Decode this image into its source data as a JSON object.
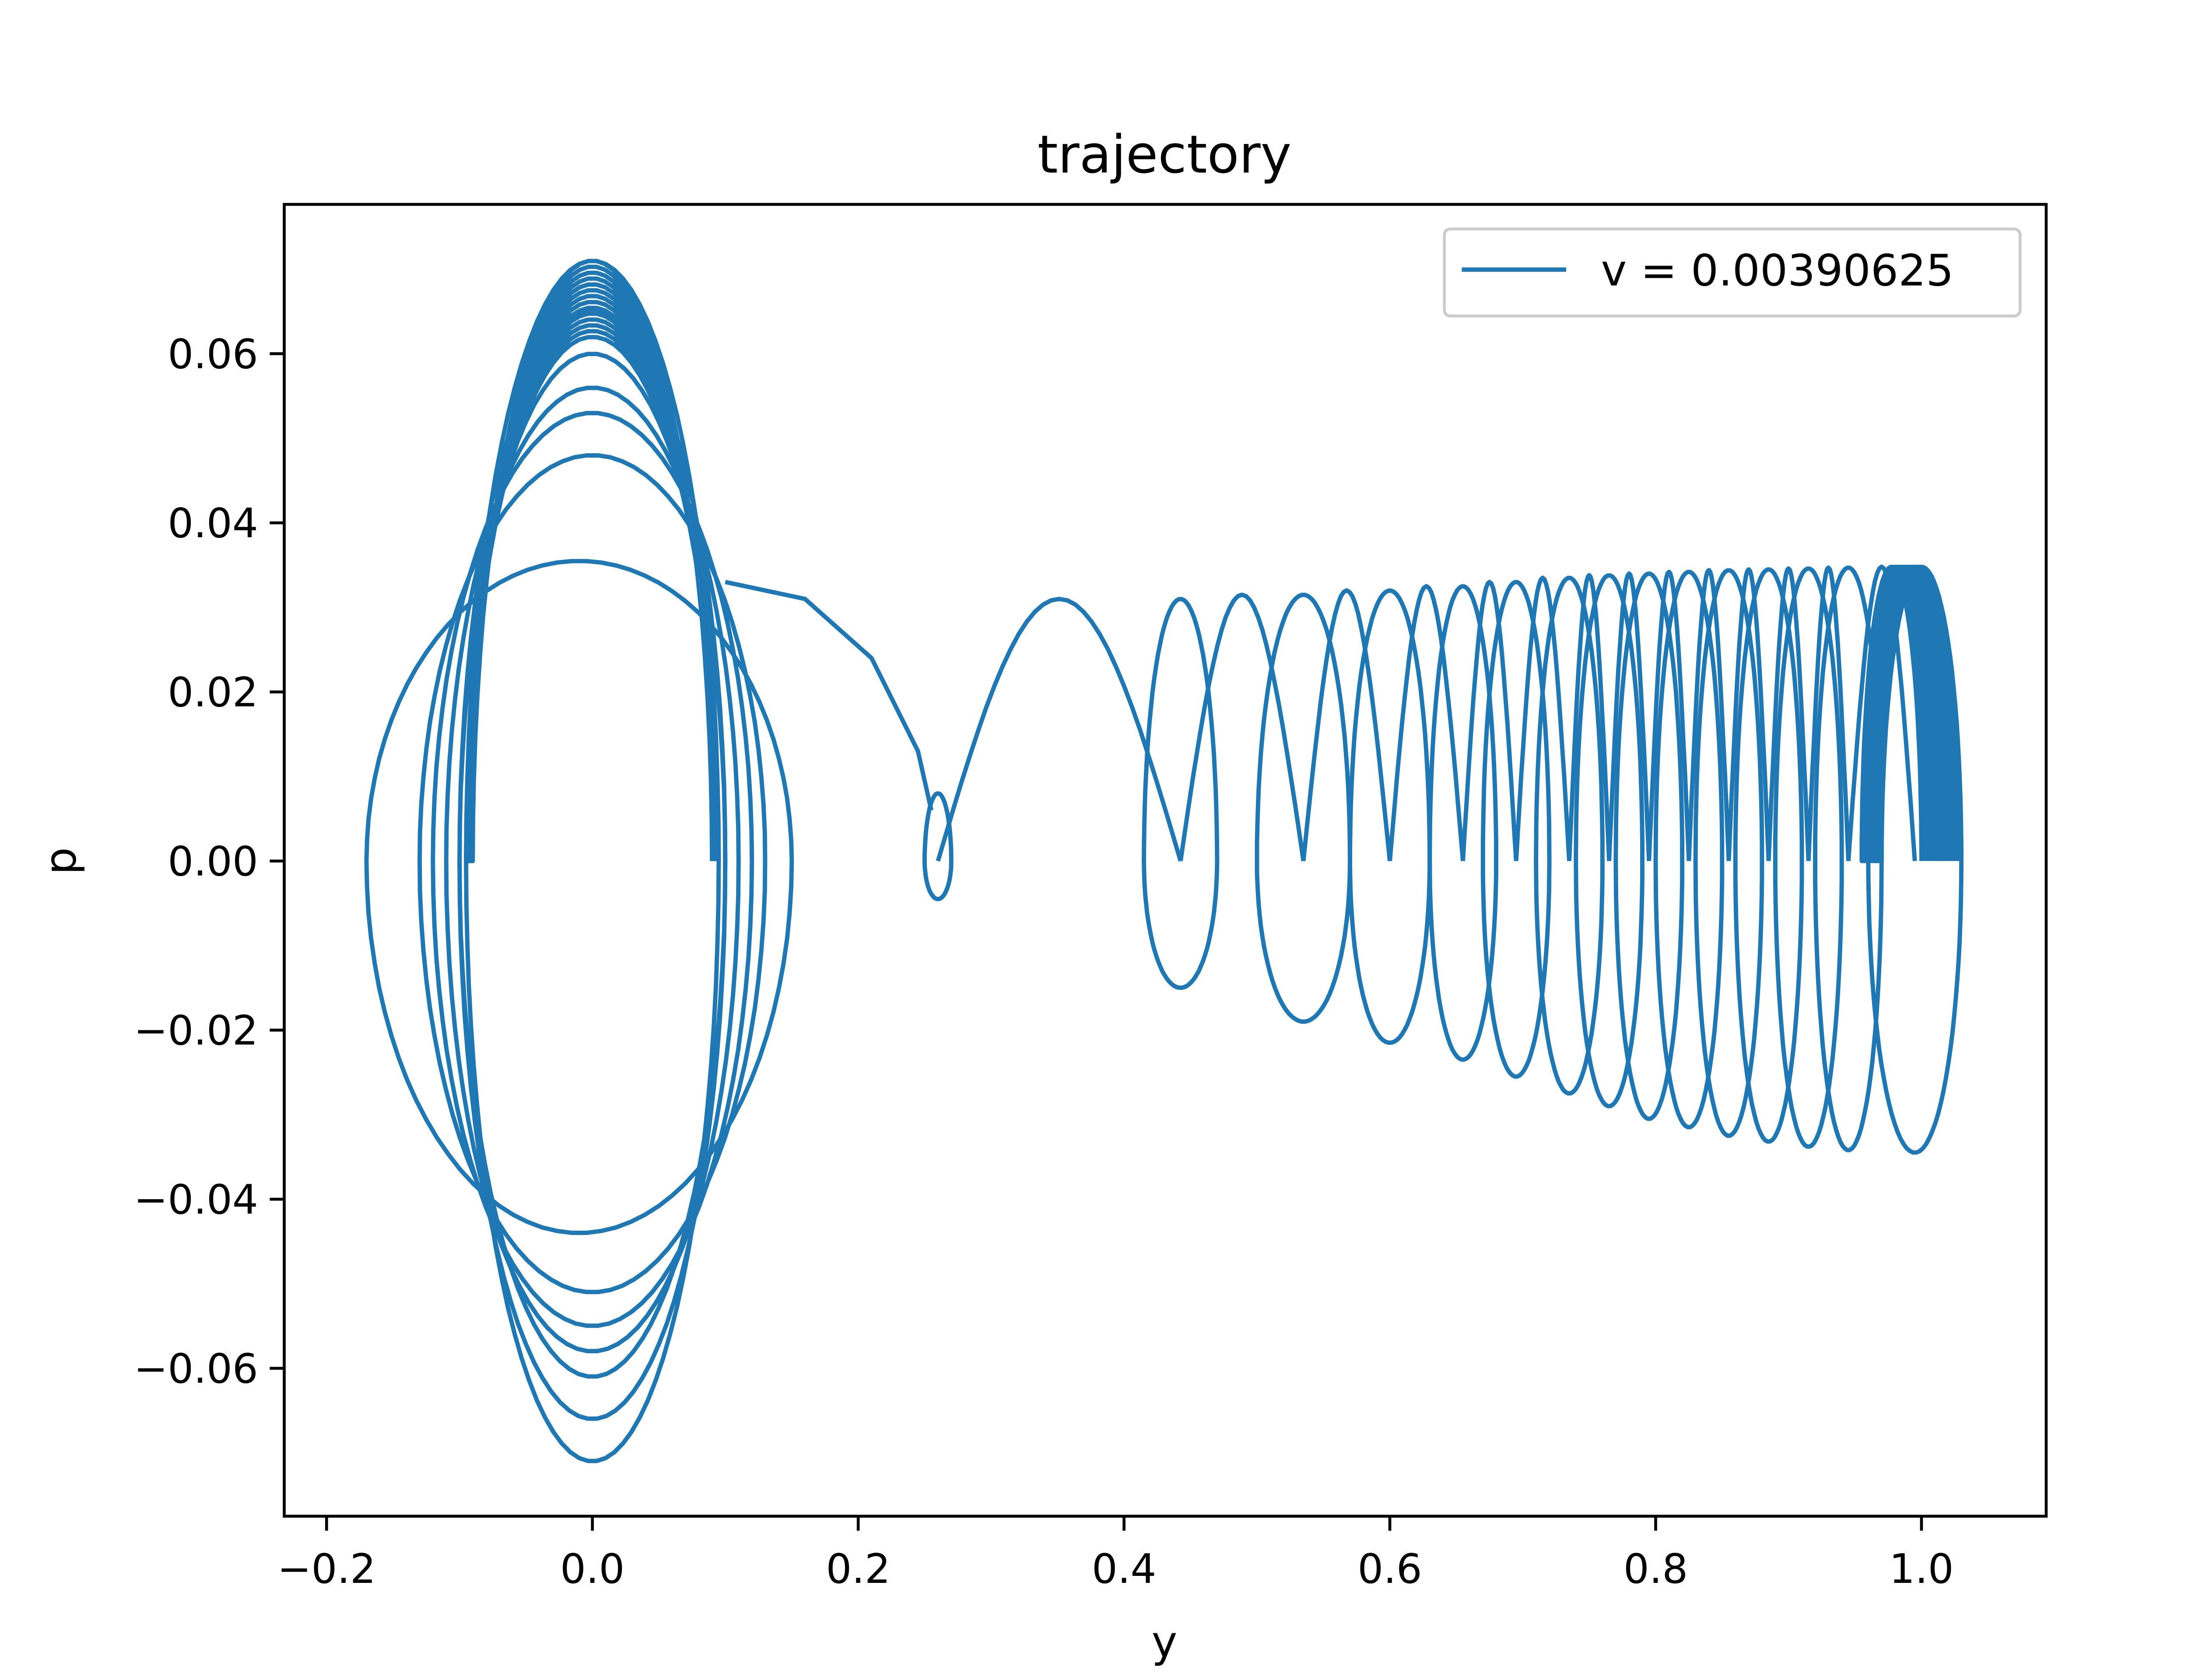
{
  "colors": {
    "series": "#1f77b4",
    "axes": "#000000",
    "background": "#ffffff",
    "legend_border": "#cccccc"
  },
  "chart_data": {
    "type": "line",
    "title": "trajectory",
    "xlabel": "y",
    "ylabel": "p",
    "xlim": [
      -0.2,
      1.1
    ],
    "ylim": [
      -0.078,
      0.078
    ],
    "xticks": [
      -0.2,
      0.0,
      0.2,
      0.4,
      0.6,
      0.8,
      1.0
    ],
    "xtick_labels": [
      "−0.2",
      "0.0",
      "0.2",
      "0.4",
      "0.6",
      "0.8",
      "1.0"
    ],
    "yticks": [
      -0.06,
      -0.04,
      -0.02,
      0.0,
      0.02,
      0.04,
      0.06
    ],
    "ytick_labels": [
      "−0.06",
      "−0.04",
      "−0.02",
      "0.00",
      "0.02",
      "0.04",
      "0.06"
    ],
    "grid": false,
    "legend_position": "upper right",
    "series": [
      {
        "name": "v = 0.00390625",
        "color": "#1f77b4",
        "loops_left": [
          {
            "center_y": 0.0,
            "y_min": -0.17,
            "y_max": 0.15,
            "p_top": 0.0355,
            "p_bottom": -0.044
          },
          {
            "center_y": 0.0,
            "y_min": -0.13,
            "y_max": 0.13,
            "p_top": 0.048,
            "p_bottom": -0.051
          },
          {
            "center_y": 0.0,
            "y_min": -0.12,
            "y_max": 0.12,
            "p_top": 0.053,
            "p_bottom": -0.055
          },
          {
            "center_y": 0.0,
            "y_min": -0.11,
            "y_max": 0.11,
            "p_top": 0.056,
            "p_bottom": -0.058
          },
          {
            "center_y": 0.0,
            "y_min": -0.1,
            "y_max": 0.1,
            "p_top": 0.06,
            "p_bottom": -0.061
          },
          {
            "center_y": 0.0,
            "y_min": -0.1,
            "y_max": 0.1,
            "p_top": 0.065,
            "p_bottom": -0.066
          },
          {
            "center_y": 0.0,
            "y_min": -0.095,
            "y_max": 0.095,
            "p_top": 0.071,
            "p_bottom": -0.071
          }
        ],
        "loops_right": [
          {
            "y_left": 0.25,
            "y_right": 0.27,
            "p_top": 0.008,
            "p_bottom": -0.0045
          },
          {
            "y_left": 0.415,
            "y_right": 0.47,
            "p_top": 0.031,
            "p_bottom": -0.015
          },
          {
            "y_left": 0.5,
            "y_right": 0.57,
            "p_top": 0.0315,
            "p_bottom": -0.019
          },
          {
            "y_left": 0.57,
            "y_right": 0.63,
            "p_top": 0.032,
            "p_bottom": -0.0215
          },
          {
            "y_left": 0.63,
            "y_right": 0.68,
            "p_top": 0.0325,
            "p_bottom": -0.0235
          },
          {
            "y_left": 0.67,
            "y_right": 0.72,
            "p_top": 0.033,
            "p_bottom": -0.0255
          },
          {
            "y_left": 0.71,
            "y_right": 0.76,
            "p_top": 0.0335,
            "p_bottom": -0.0275
          },
          {
            "y_left": 0.74,
            "y_right": 0.79,
            "p_top": 0.0338,
            "p_bottom": -0.029
          },
          {
            "y_left": 0.77,
            "y_right": 0.82,
            "p_top": 0.034,
            "p_bottom": -0.0305
          },
          {
            "y_left": 0.8,
            "y_right": 0.85,
            "p_top": 0.0342,
            "p_bottom": -0.0315
          },
          {
            "y_left": 0.83,
            "y_right": 0.88,
            "p_top": 0.0344,
            "p_bottom": -0.0325
          },
          {
            "y_left": 0.86,
            "y_right": 0.91,
            "p_top": 0.0345,
            "p_bottom": -0.0332
          },
          {
            "y_left": 0.89,
            "y_right": 0.94,
            "p_top": 0.0346,
            "p_bottom": -0.0338
          },
          {
            "y_left": 0.92,
            "y_right": 0.97,
            "p_top": 0.0347,
            "p_bottom": -0.0342
          },
          {
            "y_left": 0.96,
            "y_right": 1.03,
            "p_top": 0.0348,
            "p_bottom": -0.0345
          }
        ]
      }
    ]
  }
}
